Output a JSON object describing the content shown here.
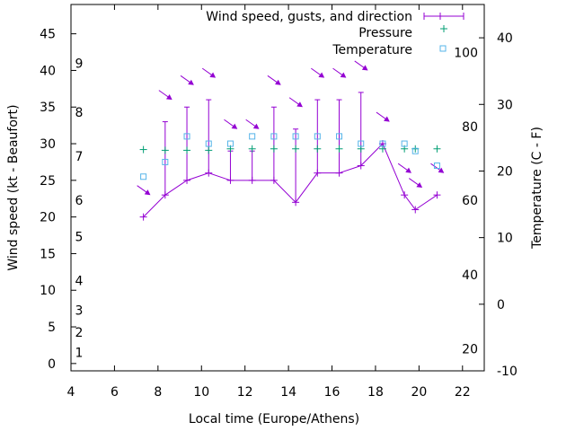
{
  "chart_data": {
    "type": "line",
    "title": "",
    "xlabel": "Local time (Europe/Athens)",
    "ylabel": "Wind speed (kt - Beaufort)",
    "y2label": "Temperature (C - F)",
    "xlim": [
      4,
      23
    ],
    "ylim": [
      -1,
      49
    ],
    "y2lim": [
      -10,
      45
    ],
    "x_ticks": [
      4,
      6,
      8,
      10,
      12,
      14,
      16,
      18,
      20,
      22
    ],
    "y_ticks": [
      0,
      5,
      10,
      15,
      20,
      25,
      30,
      35,
      40,
      45
    ],
    "y2_ticks": [
      -10,
      0,
      10,
      20,
      30,
      40
    ],
    "beaufort_ticks": [
      {
        "label": "1",
        "value": 1.5
      },
      {
        "label": "2",
        "value": 4.3
      },
      {
        "label": "3",
        "value": 7.3
      },
      {
        "label": "4",
        "value": 11.3
      },
      {
        "label": "5",
        "value": 17.3
      },
      {
        "label": "6",
        "value": 22.3
      },
      {
        "label": "7",
        "value": 28.3
      },
      {
        "label": "8",
        "value": 34.3
      },
      {
        "label": "9",
        "value": 41.0
      }
    ],
    "fahrenheit_ticks": [
      {
        "label": "20",
        "value": -6.7
      },
      {
        "label": "40",
        "value": 4.4
      },
      {
        "label": "60",
        "value": 15.6
      },
      {
        "label": "80",
        "value": 26.7
      },
      {
        "label": "100",
        "value": 37.8
      }
    ],
    "grid": false,
    "legend_position": "top-right",
    "series": [
      {
        "name": "Wind speed, gusts, and direction",
        "color": "#9400d3",
        "x": [
          7.33,
          8.33,
          9.33,
          10.33,
          11.33,
          12.33,
          13.33,
          14.33,
          15.33,
          16.33,
          17.33,
          18.33,
          19.33,
          19.83,
          20.83
        ],
        "speed": [
          20,
          23,
          25,
          26,
          25,
          25,
          25,
          22,
          26,
          26,
          27,
          30,
          23,
          21,
          23
        ],
        "gust": [
          null,
          33,
          35,
          36,
          29,
          29,
          35,
          32,
          36,
          36,
          37,
          30,
          null,
          null,
          null
        ],
        "direction_deg": [
          330,
          330,
          330,
          330,
          330,
          330,
          330,
          330,
          330,
          330,
          330,
          330,
          330,
          330,
          330
        ]
      },
      {
        "name": "Pressure",
        "color": "#009e73",
        "x": [
          7.33,
          8.33,
          9.33,
          10.33,
          11.33,
          12.33,
          13.33,
          14.33,
          15.33,
          16.33,
          17.33,
          18.33,
          19.33,
          19.83,
          20.83
        ],
        "y": [
          29.2,
          29.1,
          29.1,
          29.1,
          29.3,
          29.3,
          29.3,
          29.3,
          29.3,
          29.3,
          29.3,
          29.3,
          29.3,
          29.3,
          29.3
        ]
      },
      {
        "name": "Temperature",
        "color": "#56b4e9",
        "x": [
          7.33,
          8.33,
          9.33,
          10.33,
          11.33,
          12.33,
          13.33,
          14.33,
          15.33,
          16.33,
          17.33,
          18.33,
          19.33,
          19.83,
          20.83
        ],
        "y": [
          25.5,
          27.5,
          31,
          30,
          30,
          31,
          31,
          31,
          31,
          31,
          30,
          30,
          30,
          29,
          27
        ]
      }
    ]
  }
}
